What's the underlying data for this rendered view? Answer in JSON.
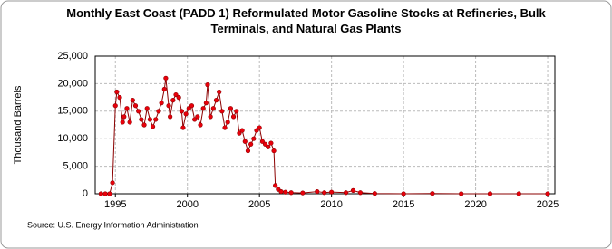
{
  "chart_data": {
    "type": "line",
    "title": "Monthly East Coast (PADD 1) Reformulated Motor Gasoline Stocks at Refineries, Bulk Terminals, and Natural Gas Plants",
    "ylabel": "Thousand Barrels",
    "source": "Source: U.S. Energy Information Administration",
    "color": "#8b0000",
    "marker_color": "#e8000b",
    "x": [
      1994.0,
      1994.3,
      1994.6,
      1994.8,
      1995.0,
      1995.1,
      1995.3,
      1995.5,
      1995.6,
      1995.8,
      1996.0,
      1996.2,
      1996.4,
      1996.6,
      1996.8,
      1997.0,
      1997.2,
      1997.4,
      1997.6,
      1997.8,
      1998.0,
      1998.2,
      1998.4,
      1998.5,
      1998.7,
      1998.8,
      1999.0,
      1999.2,
      1999.4,
      1999.6,
      1999.7,
      1999.9,
      2000.1,
      2000.3,
      2000.5,
      2000.7,
      2000.9,
      2001.1,
      2001.3,
      2001.4,
      2001.6,
      2001.8,
      2002.0,
      2002.2,
      2002.4,
      2002.6,
      2002.8,
      2003.0,
      2003.2,
      2003.4,
      2003.6,
      2003.8,
      2004.0,
      2004.2,
      2004.4,
      2004.6,
      2004.8,
      2005.0,
      2005.2,
      2005.4,
      2005.6,
      2005.8,
      2006.0,
      2006.1,
      2006.3,
      2006.5,
      2006.8,
      2007.2,
      2008.0,
      2009.0,
      2009.5,
      2010.0,
      2011.0,
      2011.5,
      2012.0,
      2013.0,
      2015.0,
      2017.0,
      2019.0,
      2021.0,
      2023.0,
      2025.0
    ],
    "values": [
      0,
      0,
      0,
      2000,
      16000,
      18500,
      17500,
      13000,
      14000,
      15500,
      13000,
      17000,
      16000,
      15000,
      13500,
      12500,
      15500,
      13500,
      12200,
      13500,
      15000,
      16500,
      19000,
      21000,
      16000,
      14000,
      17000,
      18000,
      17500,
      15000,
      12000,
      14500,
      15500,
      16000,
      13500,
      14000,
      12500,
      15500,
      16500,
      19800,
      14000,
      15500,
      17000,
      18500,
      15000,
      12000,
      13000,
      15500,
      14000,
      15000,
      11000,
      11500,
      9500,
      7800,
      9000,
      10000,
      11500,
      12000,
      9500,
      9000,
      8500,
      9200,
      7800,
      1500,
      800,
      400,
      300,
      200,
      150,
      400,
      200,
      300,
      200,
      600,
      200,
      50,
      0,
      50,
      0,
      0,
      0,
      0
    ],
    "xlim": [
      1993.6,
      2025.5
    ],
    "xticks": [
      1995,
      2000,
      2005,
      2010,
      2015,
      2020,
      2025
    ],
    "ylim": [
      0,
      25000
    ],
    "yticks": [
      0,
      {
        "value": 5000,
        "label": "5,000"
      },
      {
        "value": 10000,
        "label": "10,000"
      },
      {
        "value": 15000,
        "label": "15,000"
      },
      {
        "value": 20000,
        "label": "20,000"
      },
      {
        "value": 25000,
        "label": "25,000"
      }
    ],
    "grid": true
  }
}
